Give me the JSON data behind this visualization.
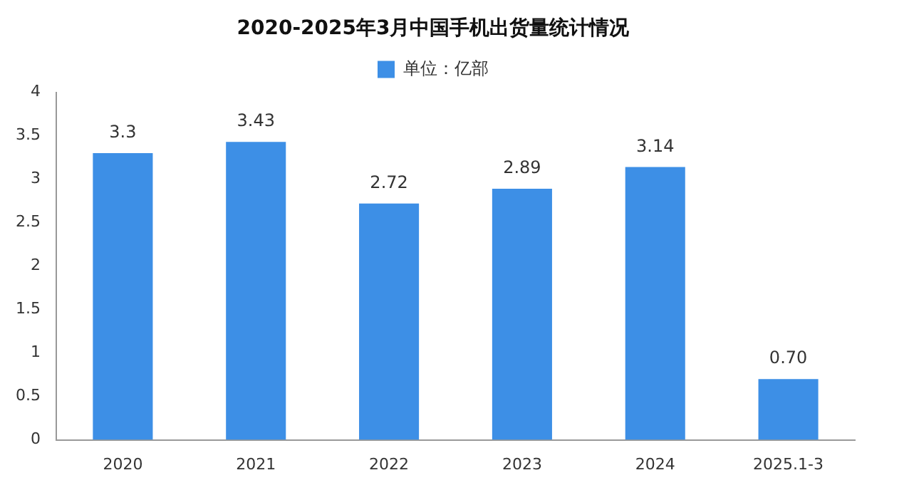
{
  "chart_data": {
    "type": "bar",
    "title": "2020-2025年3月中国手机出货量统计情况",
    "categories": [
      "2020",
      "2021",
      "2022",
      "2023",
      "2024",
      "2025.1-3"
    ],
    "series": [
      {
        "name": "单位：亿部",
        "color": "#3d8fe6",
        "values": [
          3.3,
          3.43,
          2.72,
          2.89,
          3.14,
          0.7
        ],
        "value_labels": [
          "3.3",
          "3.43",
          "2.72",
          "2.89",
          "3.14",
          "0.70"
        ]
      }
    ],
    "ylim": [
      0,
      4
    ],
    "yticks": [
      0,
      0.5,
      1,
      1.5,
      2,
      2.5,
      3,
      3.5,
      4
    ],
    "legend": "top"
  }
}
